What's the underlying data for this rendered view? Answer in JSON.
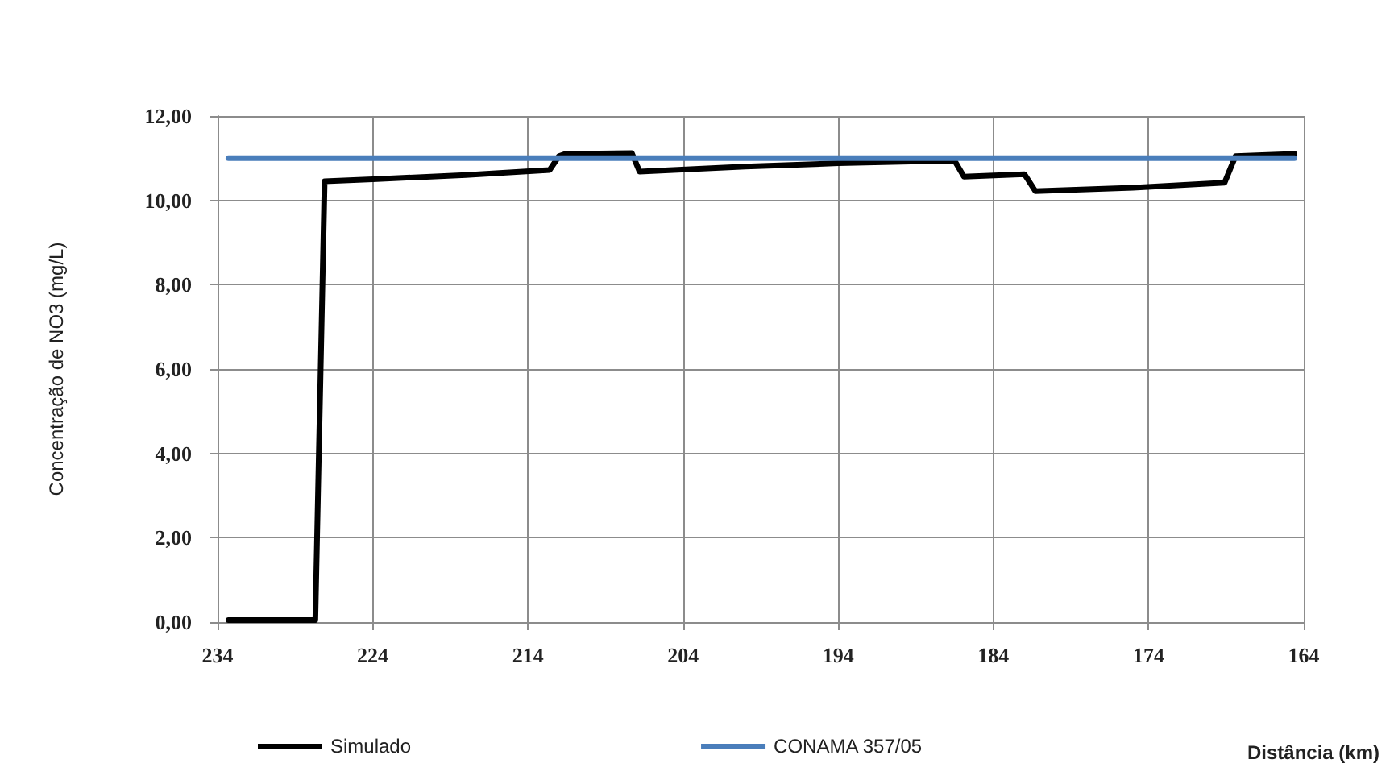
{
  "chart_data": {
    "type": "line",
    "xlabel": "Distância (km)",
    "ylabel": "Concentração de NO3 (mg/L)",
    "xlim": [
      234,
      164
    ],
    "xticks": [
      234,
      224,
      214,
      204,
      194,
      184,
      174,
      164
    ],
    "ylim": [
      0,
      12
    ],
    "yticks": [
      {
        "value": 0,
        "label": "0,00"
      },
      {
        "value": 2,
        "label": "2,00"
      },
      {
        "value": 4,
        "label": "4,00"
      },
      {
        "value": 6,
        "label": "6,00"
      },
      {
        "value": 8,
        "label": "8,00"
      },
      {
        "value": 10,
        "label": "10,00"
      },
      {
        "value": 12,
        "label": "12,00"
      }
    ],
    "grid": true,
    "legend": "bottom",
    "series": [
      {
        "name": "Simulado",
        "color": "#000000",
        "x": [
          233.3,
          227.7,
          227.1,
          224,
          218,
          212.6,
          212.0,
          211.6,
          207.3,
          206.8,
          200,
          194,
          187,
          186.5,
          185.9,
          182,
          181.3,
          175,
          169.1,
          168.4,
          164.6
        ],
        "values": [
          0.05,
          0.05,
          10.45,
          10.5,
          10.6,
          10.72,
          11.05,
          11.1,
          11.12,
          10.68,
          10.8,
          10.88,
          10.94,
          10.94,
          10.56,
          10.62,
          10.22,
          10.3,
          10.42,
          11.05,
          11.1
        ]
      },
      {
        "name": "CONAMA 357/05",
        "color": "#4a7ebb",
        "x": [
          233.3,
          164.6
        ],
        "values": [
          11,
          11
        ]
      }
    ]
  }
}
